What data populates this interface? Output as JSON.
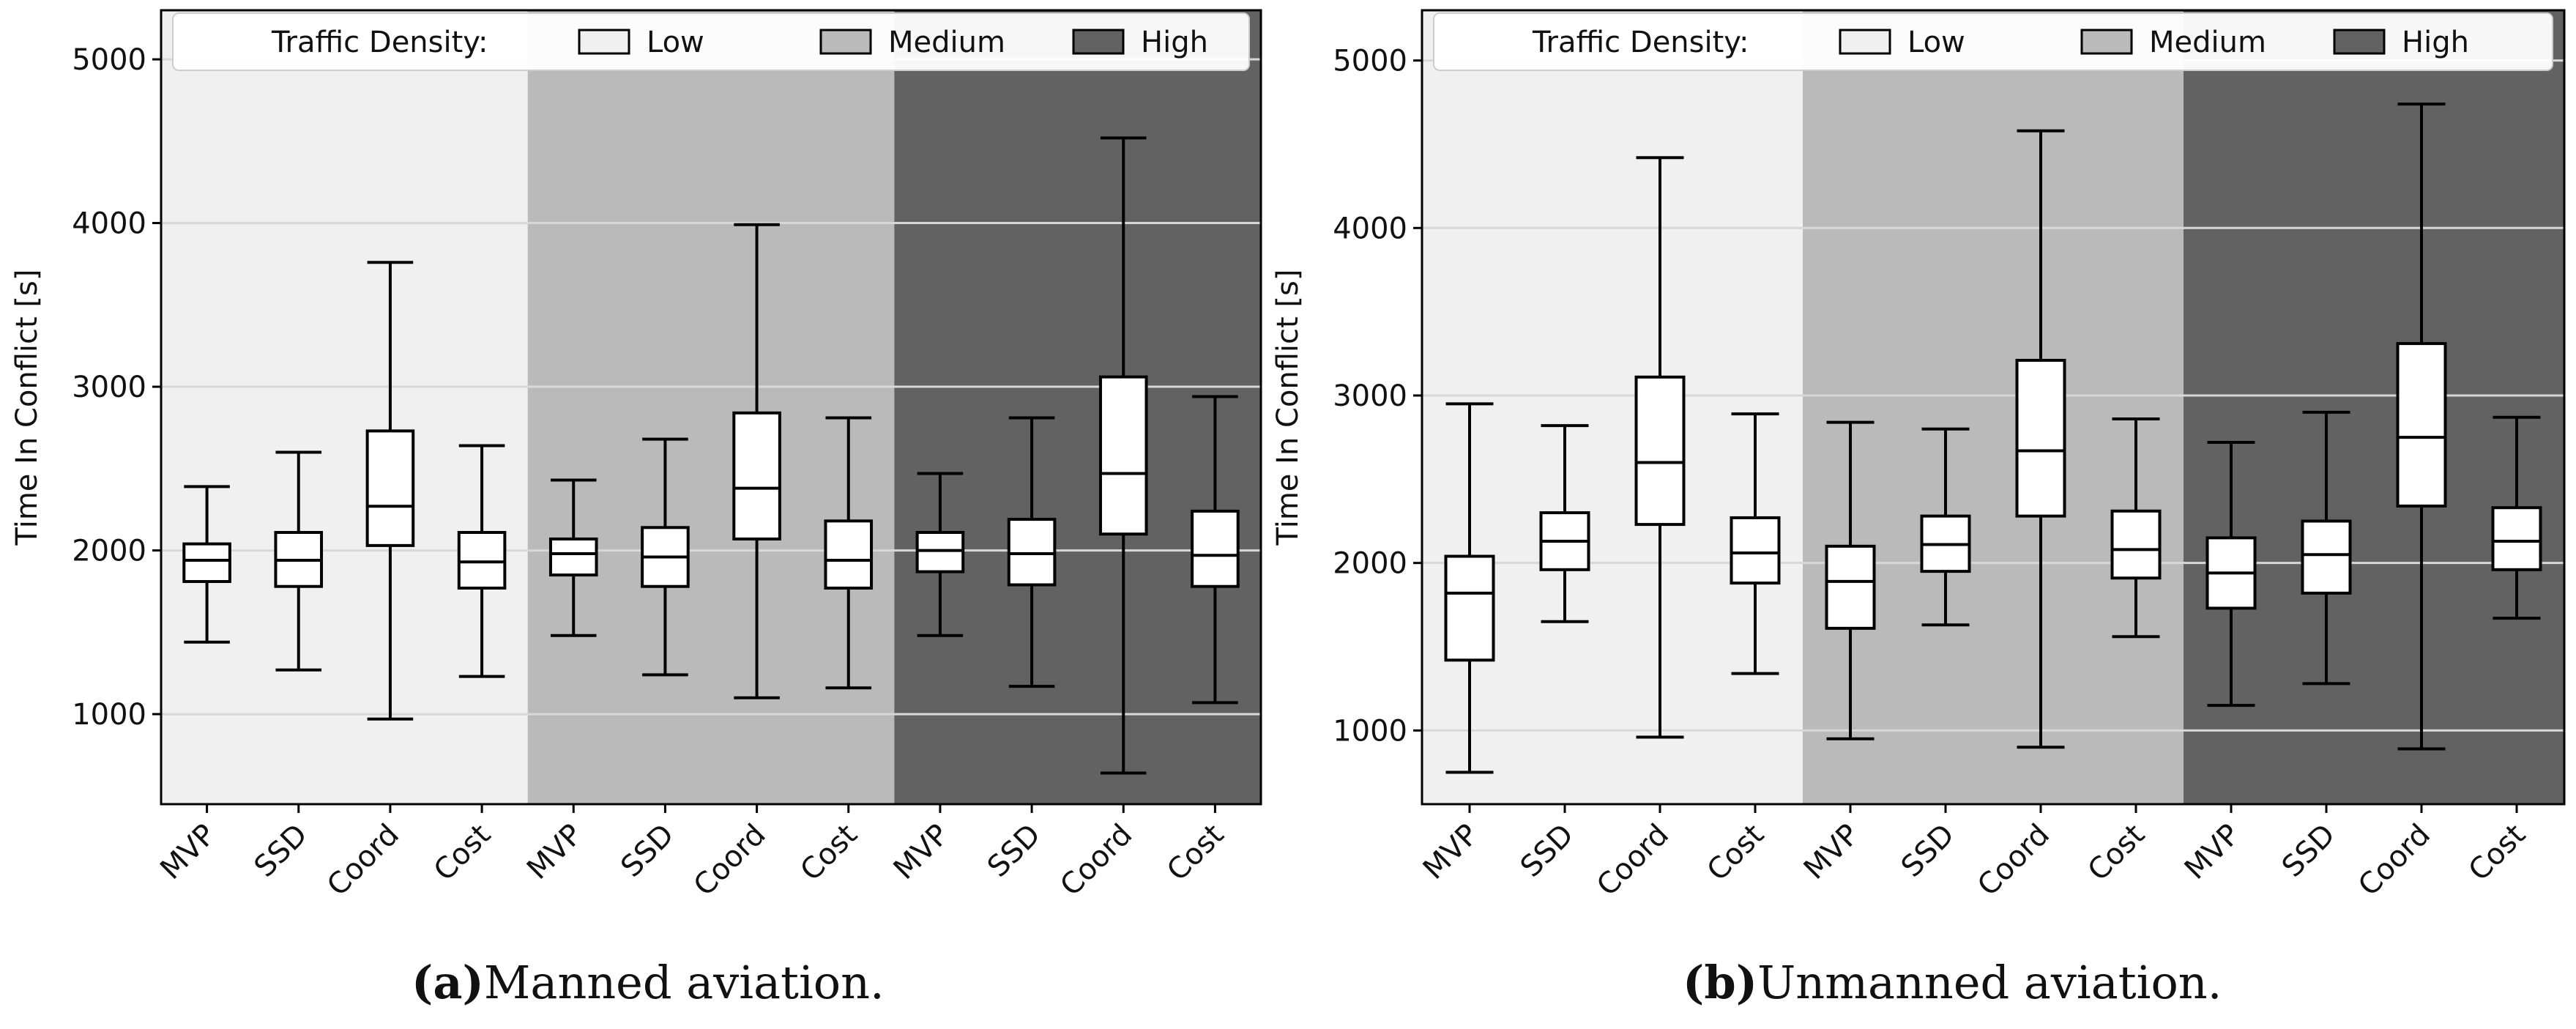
{
  "chart_data": [
    {
      "type": "box",
      "caption_letter": "a",
      "caption_text": "Manned aviation.",
      "ylabel": "Time In Conflict [s]",
      "ylim": [
        450,
        5300
      ],
      "yticks": [
        1000,
        2000,
        3000,
        4000,
        5000
      ],
      "grid": true,
      "legend_title": "Traffic Density:",
      "legend_location": "top",
      "groups": [
        {
          "name": "Low",
          "color": "#f0f0f0"
        },
        {
          "name": "Medium",
          "color": "#bababa"
        },
        {
          "name": "High",
          "color": "#626262"
        }
      ],
      "categories": [
        "MVP",
        "SSD",
        "Coord",
        "Cost",
        "MVP",
        "SSD",
        "Coord",
        "Cost",
        "MVP",
        "SSD",
        "Coord",
        "Cost"
      ],
      "boxes": [
        {
          "group": "Low",
          "label": "MVP",
          "min": 1440,
          "q1": 1810,
          "median": 1940,
          "q3": 2040,
          "max": 2390
        },
        {
          "group": "Low",
          "label": "SSD",
          "min": 1270,
          "q1": 1780,
          "median": 1940,
          "q3": 2110,
          "max": 2600
        },
        {
          "group": "Low",
          "label": "Coord",
          "min": 970,
          "q1": 2030,
          "median": 2270,
          "q3": 2730,
          "max": 3760
        },
        {
          "group": "Low",
          "label": "Cost",
          "min": 1230,
          "q1": 1770,
          "median": 1930,
          "q3": 2110,
          "max": 2640
        },
        {
          "group": "Medium",
          "label": "MVP",
          "min": 1480,
          "q1": 1850,
          "median": 1980,
          "q3": 2070,
          "max": 2430
        },
        {
          "group": "Medium",
          "label": "SSD",
          "min": 1240,
          "q1": 1780,
          "median": 1960,
          "q3": 2140,
          "max": 2680
        },
        {
          "group": "Medium",
          "label": "Coord",
          "min": 1100,
          "q1": 2070,
          "median": 2380,
          "q3": 2840,
          "max": 3990
        },
        {
          "group": "Medium",
          "label": "Cost",
          "min": 1160,
          "q1": 1770,
          "median": 1940,
          "q3": 2180,
          "max": 2810
        },
        {
          "group": "High",
          "label": "MVP",
          "min": 1480,
          "q1": 1870,
          "median": 2000,
          "q3": 2110,
          "max": 2470
        },
        {
          "group": "High",
          "label": "SSD",
          "min": 1170,
          "q1": 1790,
          "median": 1980,
          "q3": 2190,
          "max": 2810
        },
        {
          "group": "High",
          "label": "Coord",
          "min": 640,
          "q1": 2100,
          "median": 2470,
          "q3": 3060,
          "max": 4520
        },
        {
          "group": "High",
          "label": "Cost",
          "min": 1070,
          "q1": 1780,
          "median": 1970,
          "q3": 2240,
          "max": 2940
        }
      ]
    },
    {
      "type": "box",
      "caption_letter": "b",
      "caption_text": "Unmanned aviation.",
      "ylabel": "Time In Conflict [s]",
      "ylim": [
        560,
        5300
      ],
      "yticks": [
        1000,
        2000,
        3000,
        4000,
        5000
      ],
      "grid": true,
      "legend_title": "Traffic Density:",
      "legend_location": "top",
      "groups": [
        {
          "name": "Low",
          "color": "#f0f0f0"
        },
        {
          "name": "Medium",
          "color": "#bababa"
        },
        {
          "name": "High",
          "color": "#626262"
        }
      ],
      "categories": [
        "MVP",
        "SSD",
        "Coord",
        "Cost",
        "MVP",
        "SSD",
        "Coord",
        "Cost",
        "MVP",
        "SSD",
        "Coord",
        "Cost"
      ],
      "boxes": [
        {
          "group": "Low",
          "label": "MVP",
          "min": 750,
          "q1": 1420,
          "median": 1820,
          "q3": 2040,
          "max": 2950
        },
        {
          "group": "Low",
          "label": "SSD",
          "min": 1650,
          "q1": 1960,
          "median": 2130,
          "q3": 2300,
          "max": 2820
        },
        {
          "group": "Low",
          "label": "Coord",
          "min": 960,
          "q1": 2230,
          "median": 2600,
          "q3": 3110,
          "max": 4420
        },
        {
          "group": "Low",
          "label": "Cost",
          "min": 1340,
          "q1": 1880,
          "median": 2060,
          "q3": 2270,
          "max": 2890
        },
        {
          "group": "Medium",
          "label": "MVP",
          "min": 950,
          "q1": 1610,
          "median": 1890,
          "q3": 2100,
          "max": 2840
        },
        {
          "group": "Medium",
          "label": "SSD",
          "min": 1630,
          "q1": 1950,
          "median": 2110,
          "q3": 2280,
          "max": 2800
        },
        {
          "group": "Medium",
          "label": "Coord",
          "min": 900,
          "q1": 2280,
          "median": 2670,
          "q3": 3210,
          "max": 4580
        },
        {
          "group": "Medium",
          "label": "Cost",
          "min": 1560,
          "q1": 1910,
          "median": 2080,
          "q3": 2310,
          "max": 2860
        },
        {
          "group": "High",
          "label": "MVP",
          "min": 1150,
          "q1": 1730,
          "median": 1940,
          "q3": 2150,
          "max": 2720
        },
        {
          "group": "High",
          "label": "SSD",
          "min": 1280,
          "q1": 1820,
          "median": 2050,
          "q3": 2250,
          "max": 2900
        },
        {
          "group": "High",
          "label": "Coord",
          "min": 890,
          "q1": 2340,
          "median": 2750,
          "q3": 3310,
          "max": 4740
        },
        {
          "group": "High",
          "label": "Cost",
          "min": 1670,
          "q1": 1960,
          "median": 2130,
          "q3": 2330,
          "max": 2870
        }
      ]
    }
  ]
}
